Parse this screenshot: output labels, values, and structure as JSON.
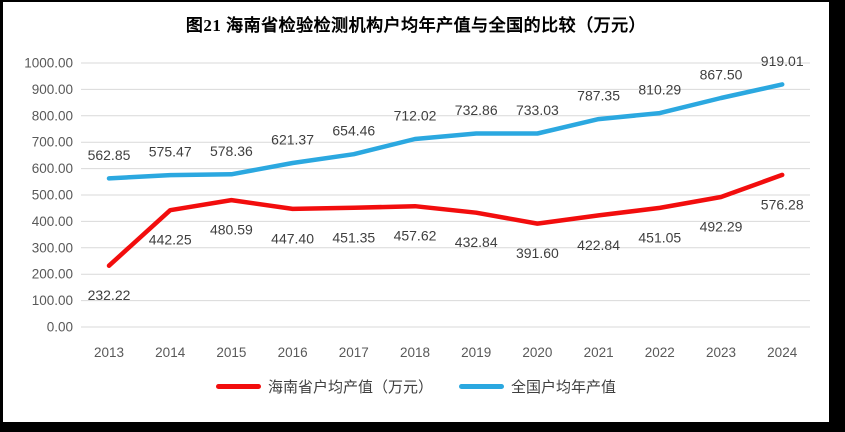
{
  "chart_data": {
    "type": "line",
    "title": "图21  海南省检验检测机构户均年产值与全国的比较（万元）",
    "categories": [
      "2013",
      "2014",
      "2015",
      "2016",
      "2017",
      "2018",
      "2019",
      "2020",
      "2021",
      "2022",
      "2023",
      "2024"
    ],
    "series": [
      {
        "name": "海南省户均产值（万元）",
        "color": "#F20D0D",
        "label_side": "below",
        "values": [
          232.22,
          442.25,
          480.59,
          447.4,
          451.35,
          457.62,
          432.84,
          391.6,
          422.84,
          451.05,
          492.29,
          576.28
        ]
      },
      {
        "name": "全国户均年产值",
        "color": "#2BA8E0",
        "label_side": "above",
        "values": [
          562.85,
          575.47,
          578.36,
          621.37,
          654.46,
          712.02,
          732.86,
          733.03,
          787.35,
          810.29,
          867.5,
          919.01
        ]
      }
    ],
    "ylim": [
      0,
      1000
    ],
    "ytick_step": 100,
    "value_decimals": 2,
    "grid": true,
    "legend_position": "bottom",
    "colors": {
      "frame": "#000000",
      "background": "#FFFFFF",
      "gridline": "#D9D9D9",
      "axis_label": "#595959",
      "data_label": "#3F3F3F",
      "title": "#000000",
      "legend_text": "#404040"
    }
  }
}
